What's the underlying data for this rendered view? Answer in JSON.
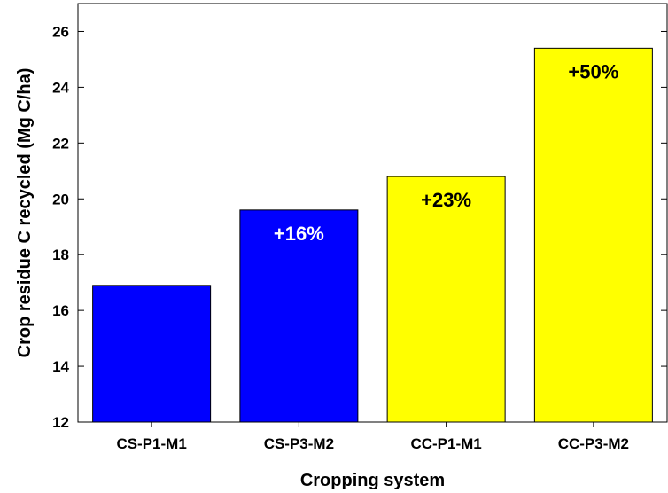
{
  "chart_data": {
    "type": "bar",
    "title": "",
    "xlabel": "Cropping system",
    "ylabel": "Crop residue C recycled (Mg C/ha)",
    "ylim": [
      12,
      27
    ],
    "yticks": [
      12,
      14,
      16,
      18,
      20,
      22,
      24,
      26
    ],
    "grid": false,
    "categories": [
      "CS-P1-M1",
      "CS-P3-M2",
      "CC-P1-M1",
      "CC-P3-M2"
    ],
    "values": [
      16.9,
      19.6,
      20.8,
      25.4
    ],
    "bar_colors": [
      "#0000ff",
      "#0000ff",
      "#ffff00",
      "#ffff00"
    ],
    "annotations": [
      "",
      "+16%",
      "+23%",
      "+50%"
    ],
    "annotation_colors": [
      "#ffffff",
      "#ffffff",
      "#000000",
      "#000000"
    ]
  }
}
